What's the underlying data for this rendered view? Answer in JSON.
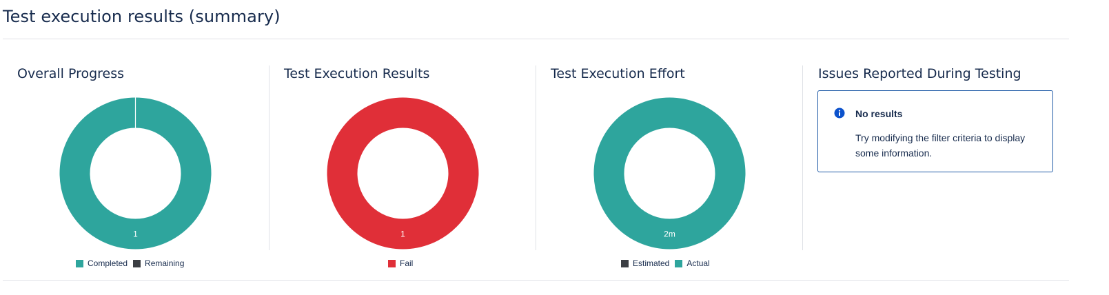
{
  "page": {
    "title": "Test execution results (summary)"
  },
  "colors": {
    "teal": "#2ea59d",
    "red": "#e02f38",
    "dark_gray": "#3b3e43",
    "info_blue": "#0c52cc"
  },
  "panels": [
    {
      "title": "Overall Progress",
      "legend": [
        {
          "label": "Completed",
          "color": "#2ea59d"
        },
        {
          "label": "Remaining",
          "color": "#3b3e43"
        }
      ]
    },
    {
      "title": "Test Execution Results",
      "legend": [
        {
          "label": "Fail",
          "color": "#e02f38"
        }
      ]
    },
    {
      "title": "Test Execution Effort",
      "legend": [
        {
          "label": "Estimated",
          "color": "#3b3e43"
        },
        {
          "label": "Actual",
          "color": "#2ea59d"
        }
      ]
    },
    {
      "title": "Issues Reported During Testing",
      "message": {
        "icon": "info-icon",
        "heading": "No results",
        "body": "Try modifying the filter criteria to display some information."
      }
    }
  ],
  "chart_data": [
    {
      "type": "pie",
      "donut": true,
      "title": "Overall Progress",
      "categories": [
        "Completed",
        "Remaining"
      ],
      "values": [
        1,
        0
      ],
      "data_labels": [
        "1"
      ]
    },
    {
      "type": "pie",
      "donut": true,
      "title": "Test Execution Results",
      "categories": [
        "Fail"
      ],
      "values": [
        1
      ],
      "data_labels": [
        "1"
      ]
    },
    {
      "type": "pie",
      "donut": true,
      "title": "Test Execution Effort",
      "categories": [
        "Estimated",
        "Actual"
      ],
      "values": [
        0,
        2
      ],
      "value_units": "minutes",
      "data_labels": [
        "2m"
      ]
    }
  ]
}
